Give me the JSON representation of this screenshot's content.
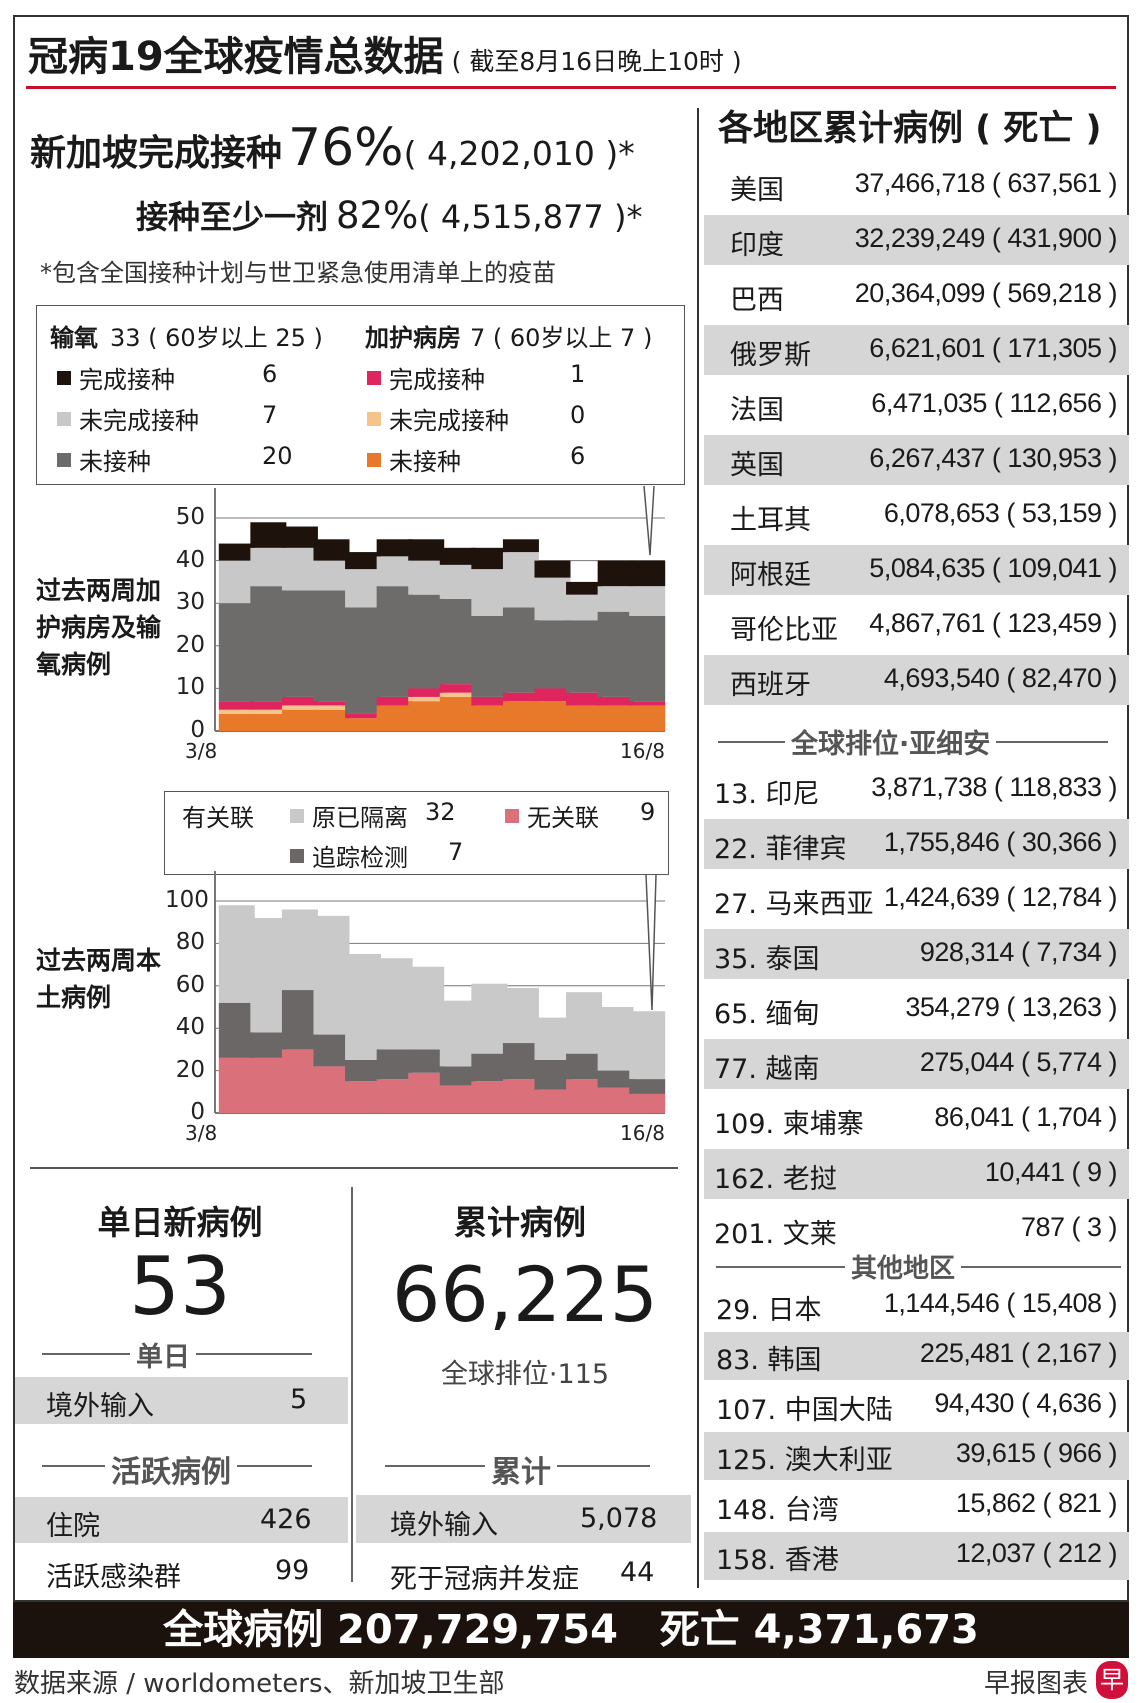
{
  "header": {
    "title": "冠病19全球疫情总数据",
    "subtitle": "( 截至8月16日晚上10时 )"
  },
  "vaccination": {
    "full_label": "新加坡完成接种",
    "full_pct": "76%",
    "full_count": "( 4,202,010 )*",
    "partial_label": "接种至少一剂",
    "partial_pct": "82%",
    "partial_count": "( 4,515,877 )*",
    "footnote": "*包含全国接种计划与世卫紧急使用清单上的疫苗"
  },
  "legend1": {
    "oxygen_title": "输氧",
    "oxygen_total": "33 ( 60岁以上 25 )",
    "icu_title": "加护病房",
    "icu_total": "7 ( 60岁以上 7 )",
    "oxygen_items": [
      {
        "label": "完成接种",
        "value": "6",
        "color": "#1e120c"
      },
      {
        "label": "未完成接种",
        "value": "7",
        "color": "#c8c8c8"
      },
      {
        "label": "未接种",
        "value": "20",
        "color": "#6e6c6a"
      }
    ],
    "icu_items": [
      {
        "label": "完成接种",
        "value": "1",
        "color": "#e0245e"
      },
      {
        "label": "未完成接种",
        "value": "0",
        "color": "#f5c48a"
      },
      {
        "label": "未接种",
        "value": "6",
        "color": "#e8792b"
      }
    ]
  },
  "legend2": {
    "title": "有关联",
    "items": [
      {
        "label": "原已隔离",
        "value": "32",
        "color": "#c9c9c9"
      },
      {
        "label": "无关联",
        "value": "9",
        "color": "#d9707a"
      },
      {
        "label": "追踪检测",
        "value": "7",
        "color": "#6b6766"
      }
    ]
  },
  "chart_data": [
    {
      "type": "bar",
      "stacked": true,
      "title": "过去两周加护病房及输氧病例",
      "xlabel": "",
      "ylabel": "",
      "x_tick_labels": [
        "3/8",
        "16/8"
      ],
      "categories": [
        "3/8",
        "4/8",
        "5/8",
        "6/8",
        "7/8",
        "8/8",
        "9/8",
        "10/8",
        "11/8",
        "12/8",
        "13/8",
        "14/8",
        "15/8",
        "16/8"
      ],
      "ylim": [
        0,
        50
      ],
      "y_ticks": [
        "0",
        "10",
        "20",
        "30",
        "40",
        "50"
      ],
      "grid": true,
      "series": [
        {
          "name": "加护病房 未接种",
          "color": "#e8792b",
          "values": [
            4,
            4,
            5,
            5,
            3,
            6,
            7,
            8,
            6,
            7,
            7,
            6,
            6,
            6
          ]
        },
        {
          "name": "加护病房 未完成接种",
          "color": "#f5c48a",
          "values": [
            1,
            1,
            1,
            1,
            0,
            0,
            1,
            1,
            0,
            0,
            0,
            0,
            0,
            0
          ]
        },
        {
          "name": "加护病房 完成接种",
          "color": "#e0245e",
          "values": [
            2,
            2,
            2,
            1,
            1,
            2,
            2,
            2,
            2,
            2,
            3,
            3,
            2,
            1
          ]
        },
        {
          "name": "输氧 未接种",
          "color": "#6e6c6a",
          "values": [
            23,
            27,
            25,
            26,
            25,
            26,
            22,
            20,
            19,
            20,
            16,
            17,
            20,
            20
          ]
        },
        {
          "name": "输氧 未完成接种",
          "color": "#c8c8c8",
          "values": [
            10,
            9,
            10,
            7,
            9,
            7,
            8,
            8,
            11,
            13,
            10,
            6,
            6,
            7
          ]
        },
        {
          "name": "输氧 完成接种",
          "color": "#1e120c",
          "values": [
            4,
            6,
            5,
            5,
            4,
            4,
            5,
            4,
            5,
            3,
            4,
            3,
            6,
            6
          ]
        }
      ]
    },
    {
      "type": "bar",
      "stacked": true,
      "title": "过去两周本土病例",
      "xlabel": "",
      "ylabel": "",
      "x_tick_labels": [
        "3/8",
        "16/8"
      ],
      "categories": [
        "3/8",
        "4/8",
        "5/8",
        "6/8",
        "7/8",
        "8/8",
        "9/8",
        "10/8",
        "11/8",
        "12/8",
        "13/8",
        "14/8",
        "15/8",
        "16/8"
      ],
      "ylim": [
        0,
        100
      ],
      "y_ticks": [
        "0",
        "20",
        "40",
        "60",
        "80",
        "100"
      ],
      "grid": true,
      "series": [
        {
          "name": "无关联",
          "color": "#d9707a",
          "values": [
            26,
            26,
            30,
            22,
            15,
            16,
            19,
            13,
            15,
            16,
            11,
            16,
            12,
            9
          ]
        },
        {
          "name": "追踪检测",
          "color": "#6b6766",
          "values": [
            26,
            12,
            28,
            15,
            10,
            14,
            11,
            9,
            13,
            17,
            14,
            12,
            8,
            7
          ]
        },
        {
          "name": "原已隔离",
          "color": "#c9c9c9",
          "values": [
            46,
            54,
            38,
            56,
            50,
            43,
            39,
            31,
            33,
            26,
            20,
            29,
            30,
            32
          ]
        }
      ]
    }
  ],
  "daily": {
    "title": "单日新病例",
    "value": "53",
    "section": "单日",
    "rows": [
      {
        "label": "境外输入",
        "value": "5"
      }
    ],
    "active_section": "活跃病例",
    "active_rows": [
      {
        "label": "住院",
        "value": "426"
      },
      {
        "label": "活跃感染群",
        "value": "99"
      }
    ]
  },
  "cumulative": {
    "title": "累计病例",
    "value": "66,225",
    "rank": "全球排位·115",
    "section": "累计",
    "rows": [
      {
        "label": "境外输入",
        "value": "5,078"
      },
      {
        "label": "死于冠病并发症",
        "value": "44"
      }
    ]
  },
  "regions": {
    "title": "各地区累计病例 ( 死亡 )",
    "top": [
      {
        "name": "美国",
        "value": "37,466,718 ( 637,561 )"
      },
      {
        "name": "印度",
        "value": "32,239,249 ( 431,900 )"
      },
      {
        "name": "巴西",
        "value": "20,364,099 ( 569,218 )"
      },
      {
        "name": "俄罗斯",
        "value": "6,621,601 ( 171,305 )"
      },
      {
        "name": "法国",
        "value": "6,471,035 ( 112,656 )"
      },
      {
        "name": "英国",
        "value": "6,267,437 ( 130,953 )"
      },
      {
        "name": "土耳其",
        "value": "6,078,653 ( 53,159 )"
      },
      {
        "name": "阿根廷",
        "value": "5,084,635 ( 109,041 )"
      },
      {
        "name": "哥伦比亚",
        "value": "4,867,761 ( 123,459 )"
      },
      {
        "name": "西班牙",
        "value": "4,693,540 ( 82,470 )"
      }
    ],
    "asean_title": "全球排位·亚细安",
    "asean": [
      {
        "name": "13. 印尼",
        "value": "3,871,738 ( 118,833 )"
      },
      {
        "name": "22. 菲律宾",
        "value": "1,755,846 ( 30,366 )"
      },
      {
        "name": "27. 马来西亚",
        "value": "1,424,639 ( 12,784 )"
      },
      {
        "name": "35. 泰国",
        "value": "928,314 ( 7,734 )"
      },
      {
        "name": "65. 缅甸",
        "value": "354,279 ( 13,263 )"
      },
      {
        "name": "77. 越南",
        "value": "275,044 ( 5,774 )"
      },
      {
        "name": "109. 柬埔寨",
        "value": "86,041 ( 1,704 )"
      },
      {
        "name": "162. 老挝",
        "value": "10,441 ( 9 )"
      },
      {
        "name": "201. 文莱",
        "value": "787 ( 3 )"
      }
    ],
    "others_title": "其他地区",
    "others": [
      {
        "name": "29. 日本",
        "value": "1,144,546 ( 15,408 )"
      },
      {
        "name": "83. 韩国",
        "value": "225,481 ( 2,167 )"
      },
      {
        "name": "107. 中国大陆",
        "value": "94,430 ( 4,636 )"
      },
      {
        "name": "125. 澳大利亚",
        "value": "39,615 ( 966 )"
      },
      {
        "name": "148. 台湾",
        "value": "15,862 ( 821 )"
      },
      {
        "name": "158. 香港",
        "value": "12,037 ( 212 )"
      }
    ]
  },
  "global": {
    "cases_label": "全球病例",
    "cases": "207,729,754",
    "deaths_label": "死亡",
    "deaths": "4,371,673"
  },
  "footer": {
    "source": "数据来源 / worldometers、新加坡卫生部",
    "credit": "早报图表",
    "logo": "早"
  }
}
